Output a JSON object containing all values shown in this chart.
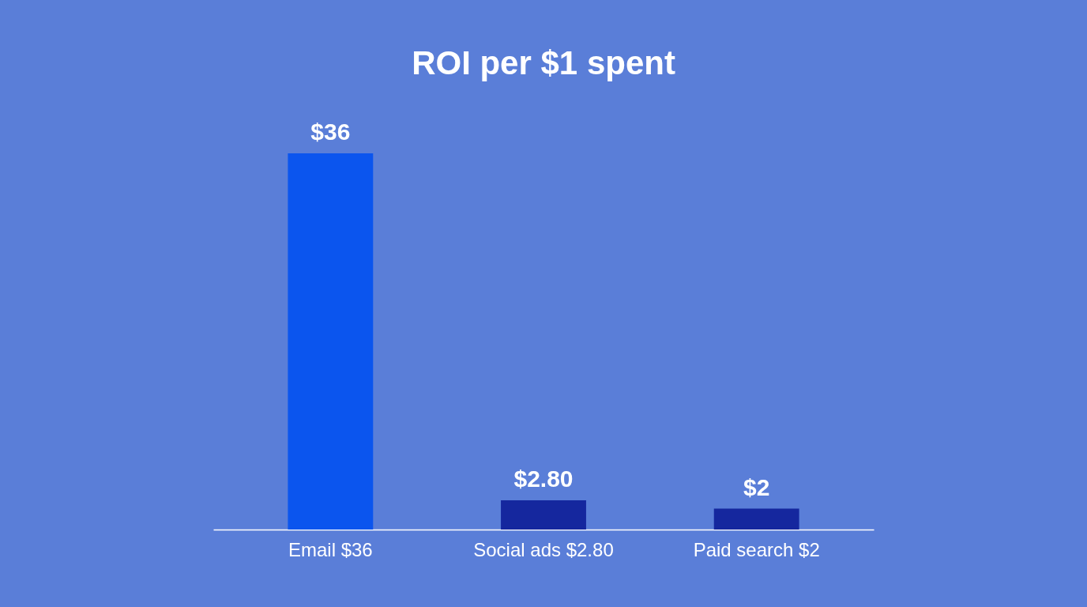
{
  "chart_data": {
    "type": "bar",
    "title": "ROI per $1 spent",
    "categories": [
      "Email $36",
      "Social ads $2.80",
      "Paid search $2"
    ],
    "values": [
      36,
      2.8,
      2
    ],
    "colors": [
      "#0b55ee",
      "#15279e",
      "#15279e"
    ],
    "value_labels": [
      "$36",
      "$2.80",
      "$2"
    ],
    "tick_labels": "x"
  }
}
